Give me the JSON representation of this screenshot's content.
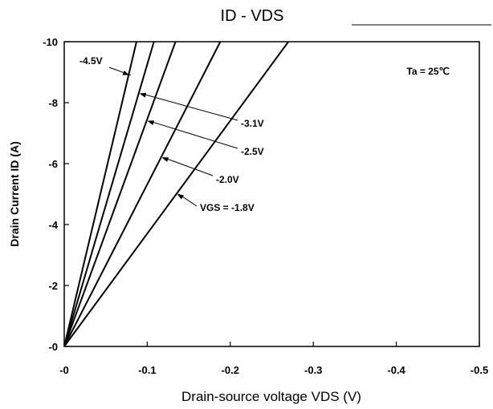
{
  "chart_data": {
    "type": "line",
    "title": "ID - VDS",
    "xlabel": "Drain-source voltage VDS (V)",
    "ylabel": "Drain Current ID (A)",
    "xlim": [
      0,
      -0.5
    ],
    "ylim": [
      0,
      -10
    ],
    "x_ticks": [
      0,
      -0.1,
      -0.2,
      -0.3,
      -0.4,
      -0.5
    ],
    "x_tick_labels": [
      "-0",
      "-0.1",
      "-0.2",
      "-0.3",
      "-0.4",
      "-0.5"
    ],
    "y_ticks": [
      0,
      -2,
      -4,
      -6,
      -8,
      -10
    ],
    "y_tick_labels": [
      "-0",
      "-2",
      "-4",
      "-6",
      "-8",
      "-10"
    ],
    "grid": false,
    "annotation": "Ta = 25℃",
    "series": [
      {
        "name": "-4.5V",
        "x": [
          0,
          -0.087
        ],
        "y": [
          0,
          -10
        ]
      },
      {
        "name": "-3.1V",
        "x": [
          0,
          -0.108
        ],
        "y": [
          0,
          -10
        ]
      },
      {
        "name": "-2.5V",
        "x": [
          0,
          -0.134
        ],
        "y": [
          0,
          -10
        ]
      },
      {
        "name": "-2.0V",
        "x": [
          0,
          -0.188
        ],
        "y": [
          0,
          -10
        ]
      },
      {
        "name": "VGS = -1.8V",
        "x": [
          0,
          -0.27
        ],
        "y": [
          0,
          -10
        ]
      }
    ]
  }
}
